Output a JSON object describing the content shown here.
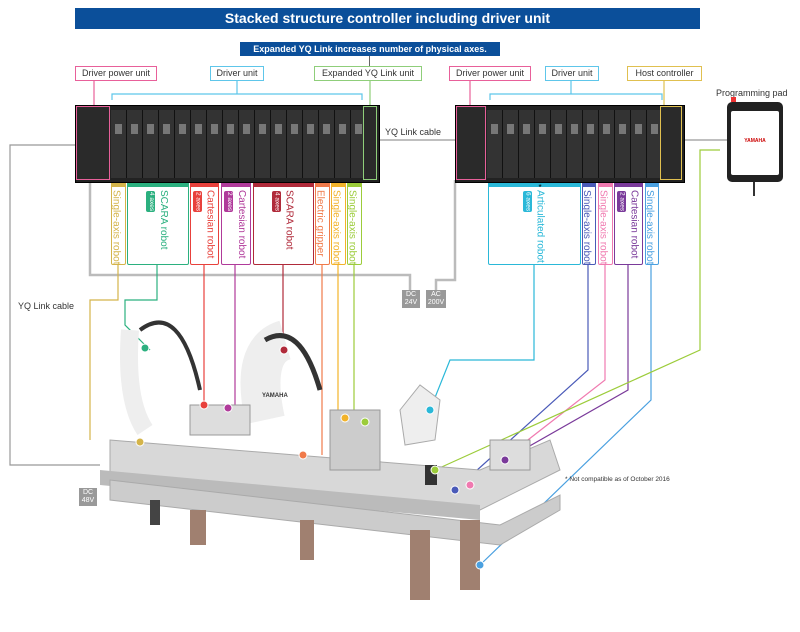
{
  "title": "Stacked structure controller including driver unit",
  "subtitle": "Expanded YQ Link increases number of physical axes.",
  "top_labels": [
    {
      "text": "Driver power unit",
      "color": "#e8609a"
    },
    {
      "text": "Driver unit",
      "color": "#5ec6ea"
    },
    {
      "text": "Expanded YQ Link unit",
      "color": "#8fce7a"
    },
    {
      "text": "Driver power unit",
      "color": "#e8609a"
    },
    {
      "text": "Driver unit",
      "color": "#5ec6ea"
    },
    {
      "text": "Host controller",
      "color": "#e0c050"
    }
  ],
  "programming_pad": {
    "label": "Programming pad",
    "brand": "YAMAHA"
  },
  "yq_link_cable_top": "YQ Link cable",
  "yq_link_cable_left": "YQ Link cable",
  "power": {
    "dc24": "DC 24V",
    "ac200": "AC 200V",
    "dc48": "DC 48V"
  },
  "note": "* Not compatible as of October 2016",
  "robot_brand": "YAMAHA",
  "axis_units": [
    {
      "label": "Single-axis robot",
      "badge": "",
      "color": "#d4b44a"
    },
    {
      "label": "SCARA robot",
      "badge": "4 axes",
      "color": "#2bb07f"
    },
    {
      "label": "Cartesian robot",
      "badge": "2 axes",
      "color": "#e8413c"
    },
    {
      "label": "Cartesian robot",
      "badge": "2 axes",
      "color": "#b03a9a"
    },
    {
      "label": "SCARA robot",
      "badge": "4 axes",
      "color": "#b02a3a"
    },
    {
      "label": "Electric gripper",
      "badge": "",
      "color": "#f07a4a"
    },
    {
      "label": "Single-axis robot",
      "badge": "",
      "color": "#f2b32a"
    },
    {
      "label": "Single-axis robot",
      "badge": "",
      "color": "#9ccc3a"
    },
    {
      "label": "Articulated robot",
      "badge": "6 axes",
      "color": "#2ab8d8",
      "asterisk": "*"
    },
    {
      "label": "Single-axis robot",
      "badge": "",
      "color": "#4a5ab8"
    },
    {
      "label": "Single-axis robot",
      "badge": "",
      "color": "#f07ab0"
    },
    {
      "label": "Cartesian robot",
      "badge": "2 axes",
      "color": "#7a3a9a"
    },
    {
      "label": "Single-axis robot",
      "badge": "",
      "color": "#4aa0e0"
    }
  ]
}
